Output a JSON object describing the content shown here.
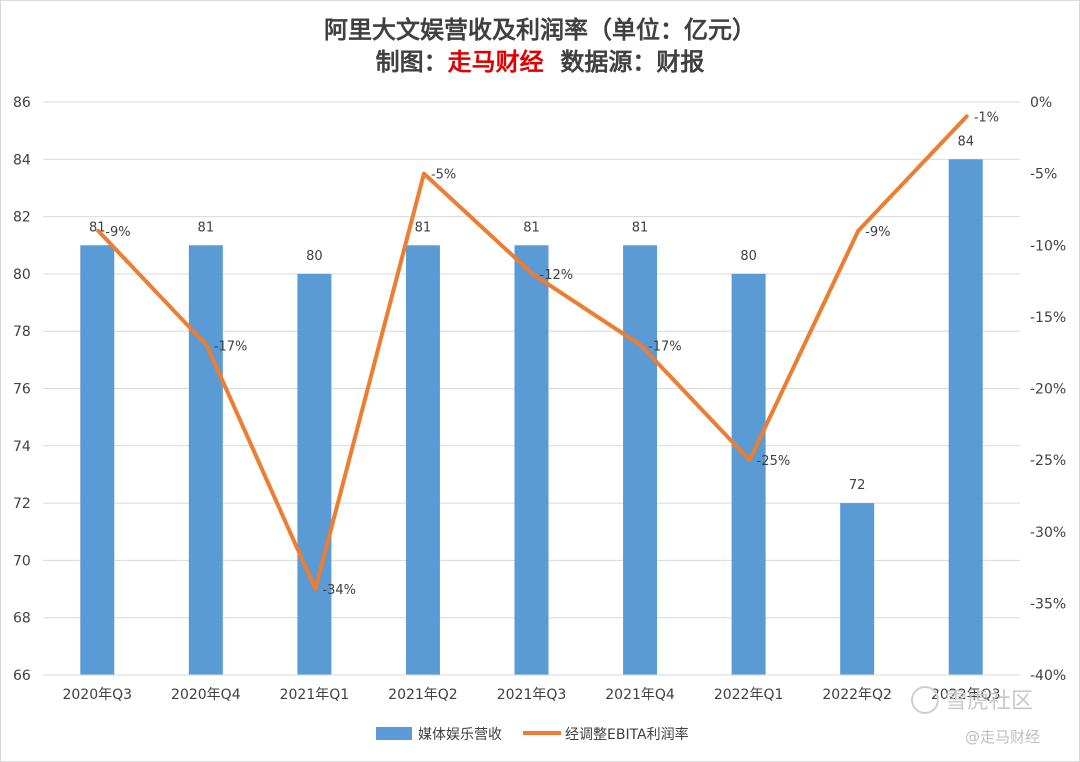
{
  "chart_data": {
    "type": "bar",
    "title": "阿里大文娱营收及利润率（单位：亿元）",
    "subtitle_prefix": "制图：",
    "subtitle_brand": "走马财经",
    "subtitle_suffix": "  数据源：财报",
    "categories": [
      "2020年Q3",
      "2020年Q4",
      "2021年Q1",
      "2021年Q2",
      "2021年Q3",
      "2021年Q4",
      "2022年Q1",
      "2022年Q2",
      "2022年Q3"
    ],
    "series": [
      {
        "name": "媒体娱乐营收",
        "type": "bar",
        "axis": "left",
        "color": "#5b9bd5",
        "values": [
          81,
          81,
          80,
          81,
          81,
          81,
          80,
          72,
          84
        ],
        "labels": [
          "81",
          "81",
          "80",
          "81",
          "81",
          "81",
          "80",
          "72",
          "84"
        ]
      },
      {
        "name": "经调整EBITA利润率",
        "type": "line",
        "axis": "right",
        "color": "#ed7d31",
        "values": [
          -9,
          -17,
          -34,
          -5,
          -12,
          -17,
          -25,
          -9,
          -1
        ],
        "labels": [
          "-9%",
          "-17%",
          "-34%",
          "-5%",
          "-12%",
          "-17%",
          "-25%",
          "-9%",
          "-1%"
        ]
      }
    ],
    "y_left": {
      "min": 66,
      "max": 86,
      "step": 2,
      "ticks": [
        "86",
        "84",
        "82",
        "80",
        "78",
        "76",
        "74",
        "72",
        "70",
        "68",
        "66"
      ]
    },
    "y_right": {
      "min": -40,
      "max": 0,
      "step": 5,
      "ticks": [
        "0%",
        "-5%",
        "-10%",
        "-15%",
        "-20%",
        "-25%",
        "-30%",
        "-35%",
        "-40%"
      ]
    },
    "grid": true,
    "legend": "bottom-center"
  },
  "watermarks": [
    "雪虎社区",
    "@走马财经"
  ]
}
